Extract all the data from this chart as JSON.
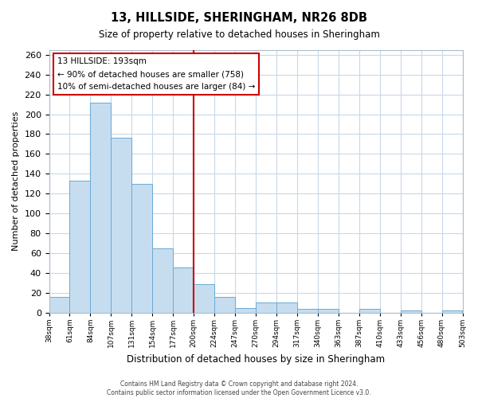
{
  "title": "13, HILLSIDE, SHERINGHAM, NR26 8DB",
  "subtitle": "Size of property relative to detached houses in Sheringham",
  "xlabel": "Distribution of detached houses by size in Sheringham",
  "ylabel": "Number of detached properties",
  "bar_values": [
    16,
    133,
    212,
    176,
    130,
    65,
    46,
    29,
    16,
    5,
    10,
    10,
    4,
    4,
    0,
    4,
    0,
    2,
    0,
    2
  ],
  "bin_labels": [
    "38sqm",
    "61sqm",
    "84sqm",
    "107sqm",
    "131sqm",
    "154sqm",
    "177sqm",
    "200sqm",
    "224sqm",
    "247sqm",
    "270sqm",
    "294sqm",
    "317sqm",
    "340sqm",
    "363sqm",
    "387sqm",
    "410sqm",
    "433sqm",
    "456sqm",
    "480sqm",
    "503sqm"
  ],
  "bar_color": "#c6ddf0",
  "bar_edge_color": "#6aaad4",
  "vline_x": 7,
  "vline_color": "#cc0000",
  "ylim": [
    0,
    265
  ],
  "yticks": [
    0,
    20,
    40,
    60,
    80,
    100,
    120,
    140,
    160,
    180,
    200,
    220,
    240,
    260
  ],
  "annotation_title": "13 HILLSIDE: 193sqm",
  "annotation_line1": "← 90% of detached houses are smaller (758)",
  "annotation_line2": "10% of semi-detached houses are larger (84) →",
  "annotation_box_color": "#ffffff",
  "annotation_box_edge": "#cc0000",
  "footer1": "Contains HM Land Registry data © Crown copyright and database right 2024.",
  "footer2": "Contains public sector information licensed under the Open Government Licence v3.0.",
  "background_color": "#ffffff",
  "grid_color": "#c8d8e8"
}
